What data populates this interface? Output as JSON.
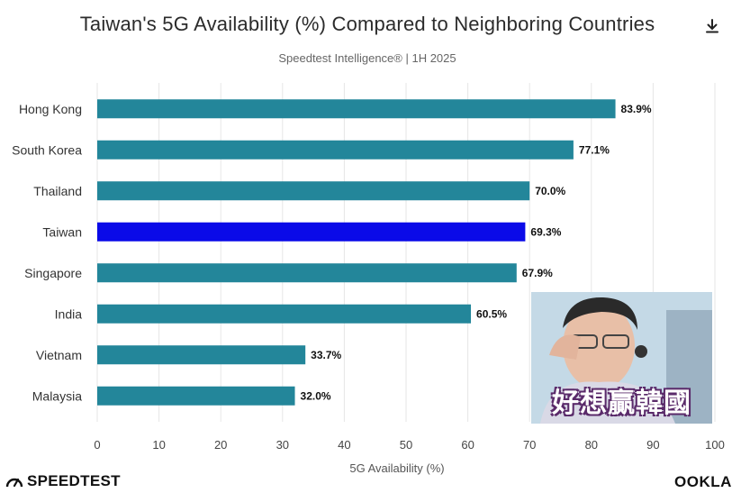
{
  "header": {
    "title": "Taiwan's 5G Availability (%) Compared to Neighboring Countries",
    "subtitle": "Speedtest Intelligence® | 1H 2025",
    "download_icon": "download-icon"
  },
  "chart_data": {
    "type": "bar",
    "orientation": "horizontal",
    "title": "Taiwan's 5G Availability (%) Compared to Neighboring Countries",
    "subtitle": "Speedtest Intelligence® | 1H 2025",
    "xlabel": "5G Availability (%)",
    "ylabel": "",
    "xlim": [
      0,
      100
    ],
    "xticks": [
      0,
      10,
      20,
      30,
      40,
      50,
      60,
      70,
      80,
      90,
      100
    ],
    "categories": [
      "Hong Kong",
      "South Korea",
      "Thailand",
      "Taiwan",
      "Singapore",
      "India",
      "Vietnam",
      "Malaysia"
    ],
    "values": [
      83.9,
      77.1,
      70.0,
      69.3,
      67.9,
      60.5,
      33.7,
      32.0
    ],
    "value_labels": [
      "83.9%",
      "77.1%",
      "70.0%",
      "69.3%",
      "67.9%",
      "60.5%",
      "33.7%",
      "32.0%"
    ],
    "colors": [
      "#23869a",
      "#23869a",
      "#23869a",
      "#0a0ae8",
      "#23869a",
      "#23869a",
      "#23869a",
      "#23869a"
    ],
    "grid": true
  },
  "footer": {
    "left_logo": "SPEEDTEST",
    "right_logo": "OOKLA"
  },
  "overlay": {
    "caption": "好想贏韓國"
  }
}
